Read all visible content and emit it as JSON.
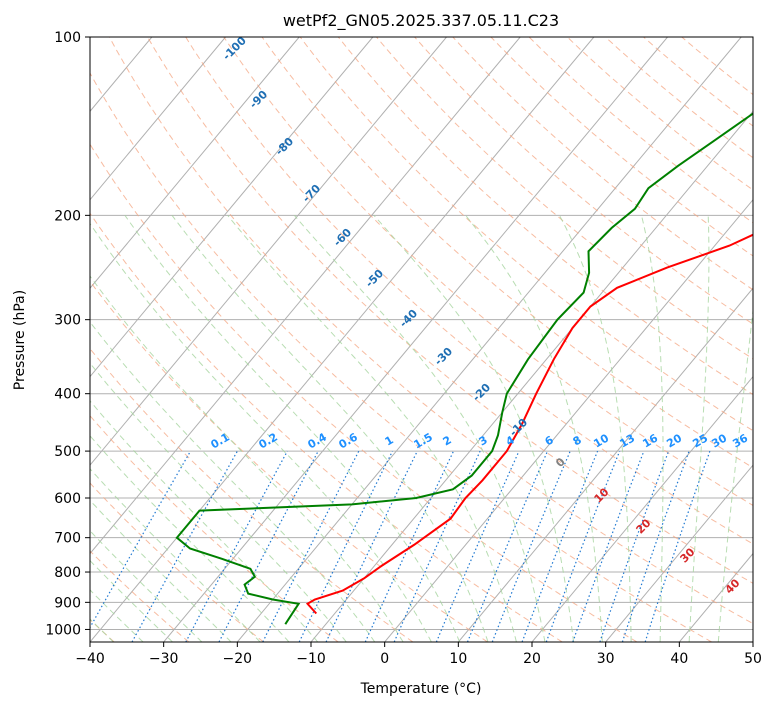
{
  "chart_data": {
    "type": "line",
    "title": "wetPf2_GN05.2025.337.05.11.C23",
    "xlabel": "Temperature (°C)",
    "ylabel": "Pressure (hPa)",
    "xlim": [
      -40,
      50
    ],
    "ylim": [
      1050,
      100
    ],
    "y_scale": "log",
    "x_ticks": [
      -40,
      -30,
      -20,
      -10,
      0,
      10,
      20,
      30,
      40,
      50
    ],
    "x_tick_labels": [
      "−40",
      "−30",
      "−20",
      "−10",
      "0",
      "10",
      "20",
      "30",
      "40",
      "50"
    ],
    "y_ticks": [
      100,
      200,
      300,
      400,
      500,
      600,
      700,
      800,
      900,
      1000
    ],
    "y_tick_labels": [
      "100",
      "200",
      "300",
      "400",
      "500",
      "600",
      "700",
      "800",
      "900",
      "1000"
    ],
    "grid": true,
    "series": [
      {
        "color": "#ff0000",
        "points": [
          {
            "p": 940,
            "t": -12.5
          },
          {
            "p": 905,
            "t": -14.8
          },
          {
            "p": 890,
            "t": -14.3
          },
          {
            "p": 860,
            "t": -11.5
          },
          {
            "p": 820,
            "t": -10.0
          },
          {
            "p": 780,
            "t": -9.0
          },
          {
            "p": 720,
            "t": -7.0
          },
          {
            "p": 650,
            "t": -5.0
          },
          {
            "p": 600,
            "t": -5.3
          },
          {
            "p": 560,
            "t": -5.0
          },
          {
            "p": 500,
            "t": -5.0
          },
          {
            "p": 450,
            "t": -6.0
          },
          {
            "p": 400,
            "t": -7.5
          },
          {
            "p": 350,
            "t": -9.0
          },
          {
            "p": 310,
            "t": -10.0
          },
          {
            "p": 285,
            "t": -10.0
          },
          {
            "p": 265,
            "t": -8.5
          },
          {
            "p": 245,
            "t": -4.0
          },
          {
            "p": 225,
            "t": 2.0
          },
          {
            "p": 200,
            "t": 7.5
          },
          {
            "p": 180,
            "t": 12.0
          },
          {
            "p": 160,
            "t": 16.0
          },
          {
            "p": 140,
            "t": 20.5
          },
          {
            "p": 125,
            "t": 25.0
          },
          {
            "p": 110,
            "t": 29.0
          },
          {
            "p": 100,
            "t": 31.5
          }
        ]
      },
      {
        "color": "#008000",
        "points": [
          {
            "p": 980,
            "t": -15.5
          },
          {
            "p": 950,
            "t": -15.7
          },
          {
            "p": 905,
            "t": -16.0
          },
          {
            "p": 890,
            "t": -20.0
          },
          {
            "p": 870,
            "t": -24.0
          },
          {
            "p": 840,
            "t": -25.5
          },
          {
            "p": 815,
            "t": -25.0
          },
          {
            "p": 790,
            "t": -26.5
          },
          {
            "p": 760,
            "t": -31.5
          },
          {
            "p": 730,
            "t": -37.0
          },
          {
            "p": 700,
            "t": -40.0
          },
          {
            "p": 630,
            "t": -40.0
          },
          {
            "p": 615,
            "t": -20.0
          },
          {
            "p": 600,
            "t": -12.0
          },
          {
            "p": 580,
            "t": -8.0
          },
          {
            "p": 550,
            "t": -7.0
          },
          {
            "p": 500,
            "t": -7.0
          },
          {
            "p": 470,
            "t": -8.0
          },
          {
            "p": 430,
            "t": -10.0
          },
          {
            "p": 400,
            "t": -11.5
          },
          {
            "p": 350,
            "t": -12.5
          },
          {
            "p": 300,
            "t": -13.0
          },
          {
            "p": 270,
            "t": -12.5
          },
          {
            "p": 250,
            "t": -14.0
          },
          {
            "p": 230,
            "t": -16.5
          },
          {
            "p": 210,
            "t": -16.0
          },
          {
            "p": 195,
            "t": -15.0
          },
          {
            "p": 180,
            "t": -15.5
          },
          {
            "p": 165,
            "t": -14.0
          },
          {
            "p": 150,
            "t": -12.0
          },
          {
            "p": 130,
            "t": -9.0
          },
          {
            "p": 115,
            "t": -5.0
          },
          {
            "p": 100,
            "t": 1.0
          }
        ]
      }
    ],
    "dry_adiabat_labels": [
      "-100",
      "-90",
      "-80",
      "-70",
      "-60",
      "-50",
      "-40",
      "-30",
      "-20",
      "-10"
    ],
    "mixing_ratio_labels": [
      "0.1",
      "0.2",
      "0.4",
      "0.6",
      "1",
      "1.5",
      "2",
      "3",
      "4",
      "6",
      "8",
      "10",
      "13",
      "16",
      "20",
      "25",
      "30",
      "36"
    ],
    "moist_adiabat_labels": [
      "0",
      "10",
      "20",
      "30",
      "40"
    ],
    "colors": {
      "isotherm": "#b0b0b0",
      "isobar": "#b0b0b0",
      "dry_adiabat": "#f4a582",
      "moist_adiabat": "#a6d49f",
      "mixing_ratio": "#1f78d1",
      "dry_label": "#1f6fb4",
      "moist_label": "#d62728",
      "zero_label": "#808080",
      "mixing_label": "#1e90ff"
    }
  }
}
